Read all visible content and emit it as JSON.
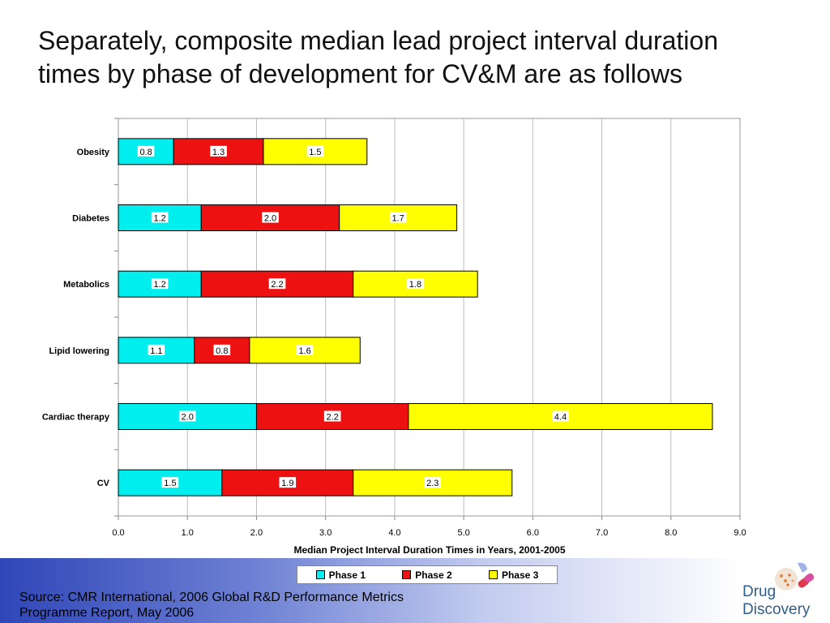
{
  "slide": {
    "title_line1": "Separately, composite median lead project interval duration",
    "title_line2": "times by phase of development for CV&M are as follows",
    "source_line1": "Source: CMR International, 2006 Global R&D Performance Metrics",
    "source_line2": "Programme Report, May 2006"
  },
  "logo": {
    "line1": "Drug",
    "line2": "Discovery",
    "icon": "pill-logo-icon"
  },
  "chart_data": {
    "type": "bar",
    "orientation": "horizontal",
    "stacked": true,
    "categories": [
      "Obesity",
      "Diabetes",
      "Metabolics",
      "Lipid lowering",
      "Cardiac therapy",
      "CV"
    ],
    "series": [
      {
        "name": "Phase 1",
        "color": "#00eeee",
        "values": [
          0.8,
          1.2,
          1.2,
          1.1,
          2.0,
          1.5
        ],
        "labels": [
          "0.8",
          "1.2",
          "1.2",
          "1.1",
          "2.0",
          "1.5"
        ]
      },
      {
        "name": "Phase 2",
        "color": "#ee1111",
        "values": [
          1.3,
          2.0,
          2.2,
          0.8,
          2.2,
          1.9
        ],
        "labels": [
          "1.3",
          "2.0",
          "2.2",
          "0.8",
          "2.2",
          "1.9"
        ]
      },
      {
        "name": "Phase 3",
        "color": "#ffff00",
        "values": [
          1.5,
          1.7,
          1.8,
          1.6,
          4.4,
          2.3
        ],
        "labels": [
          "1.5",
          "1.7",
          "1.8",
          "1.6",
          "4.4",
          "2.3"
        ]
      }
    ],
    "xlabel": "Median Project Interval Duration Times in Years, 2001-2005",
    "xlim": [
      0,
      9
    ],
    "xticks": [
      "0.0",
      "1.0",
      "2.0",
      "3.0",
      "4.0",
      "5.0",
      "6.0",
      "7.0",
      "8.0",
      "9.0"
    ],
    "grid": true,
    "legend_position": "bottom"
  }
}
